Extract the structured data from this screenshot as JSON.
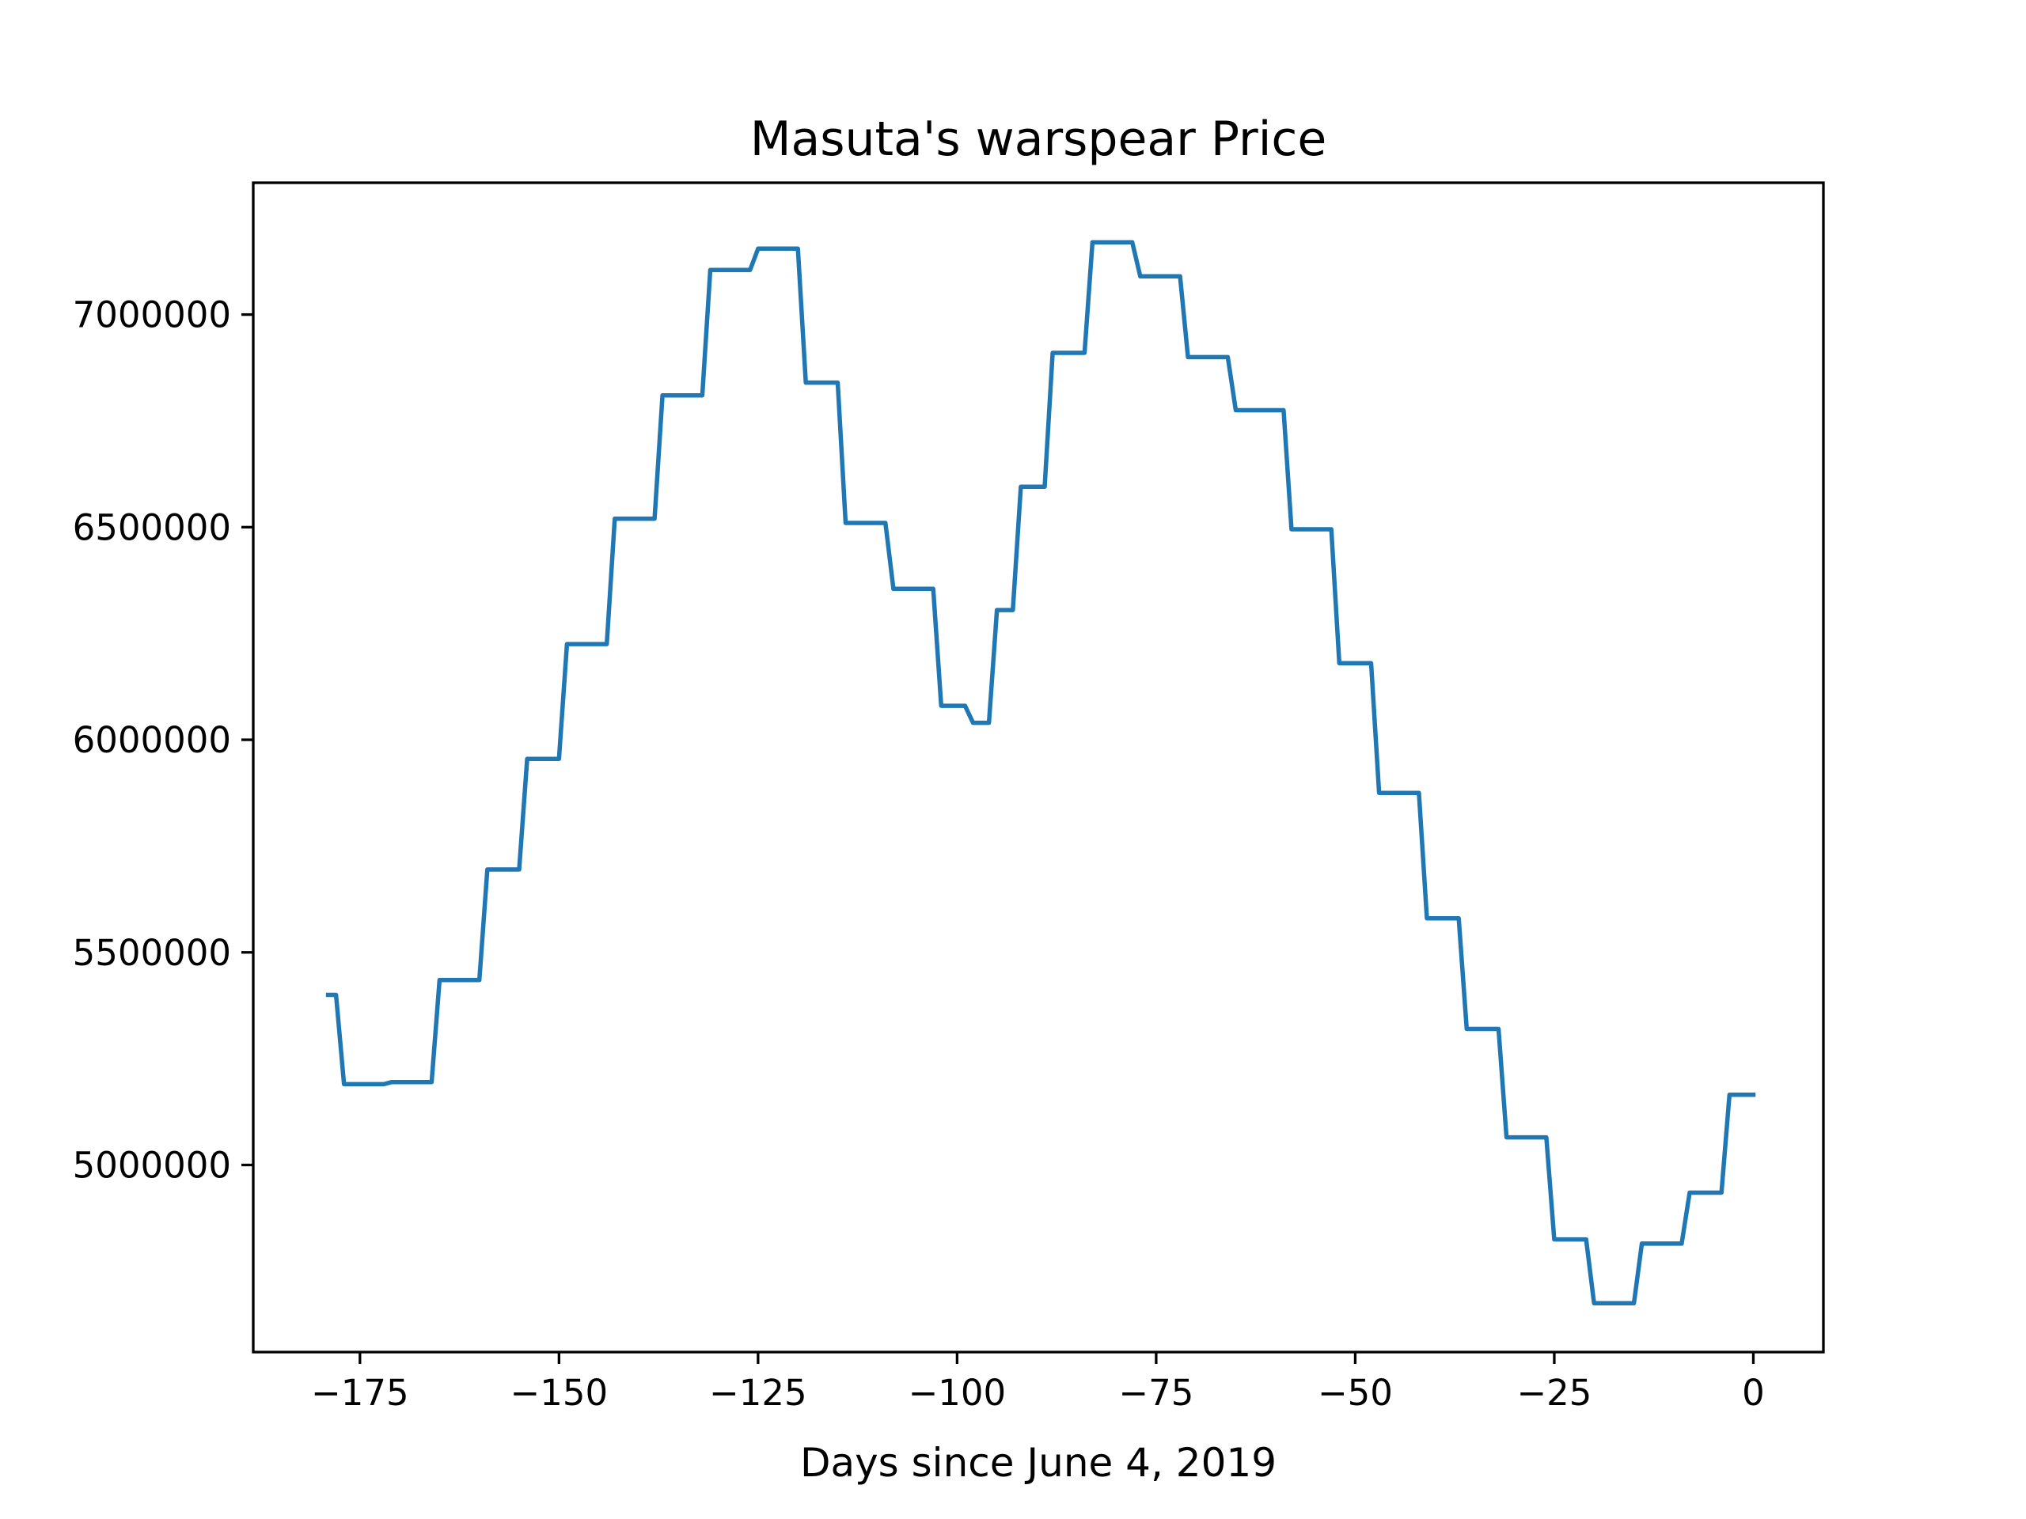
{
  "chart_data": {
    "type": "line",
    "title": "Masuta's warspear Price",
    "xlabel": "Days since June 4, 2019",
    "ylabel": "",
    "xlim": [
      -188.4,
      8.8
    ],
    "ylim": [
      4560000,
      7310000
    ],
    "xticks": [
      -175,
      -150,
      -125,
      -100,
      -75,
      -50,
      -25,
      0
    ],
    "xtick_labels": [
      "−175",
      "−150",
      "−125",
      "−100",
      "−75",
      "−50",
      "−25",
      "0"
    ],
    "yticks": [
      5000000,
      5500000,
      6000000,
      6500000,
      7000000
    ],
    "ytick_labels": [
      "5000000",
      "5500000",
      "6000000",
      "6500000",
      "7000000"
    ],
    "grid": false,
    "colors": {
      "series": "#1f77b4",
      "axes": "#000000",
      "background": "#ffffff"
    },
    "series": [
      {
        "name": "",
        "x": [
          -179,
          -178,
          -177,
          -172,
          -171,
          -166,
          -165,
          -160,
          -159,
          -155,
          -154,
          -150,
          -149,
          -144,
          -143,
          -138,
          -137,
          -132,
          -131,
          -126,
          -125,
          -120,
          -119,
          -115,
          -114,
          -109,
          -108,
          -103,
          -102,
          -99,
          -98,
          -96,
          -95,
          -93,
          -92,
          -89,
          -88,
          -84,
          -83,
          -78,
          -77,
          -72,
          -71,
          -66,
          -65,
          -59,
          -58,
          -53,
          -52,
          -48,
          -47,
          -42,
          -41,
          -37,
          -36,
          -32,
          -31,
          -26,
          -25,
          -21,
          -20,
          -15,
          -14,
          -9,
          -8,
          -4,
          -3,
          0
        ],
        "y": [
          5400000,
          5400000,
          5190000,
          5190000,
          5195000,
          5195000,
          5435000,
          5435000,
          5695000,
          5695000,
          5955000,
          5955000,
          6225000,
          6225000,
          6520000,
          6520000,
          6810000,
          6810000,
          7105000,
          7105000,
          7155000,
          7155000,
          6840000,
          6840000,
          6510000,
          6510000,
          6355000,
          6355000,
          6080000,
          6080000,
          6040000,
          6040000,
          6305000,
          6305000,
          6595000,
          6595000,
          6910000,
          6910000,
          7170000,
          7170000,
          7090000,
          7090000,
          6900000,
          6900000,
          6775000,
          6775000,
          6495000,
          6495000,
          6180000,
          6180000,
          5875000,
          5875000,
          5580000,
          5580000,
          5320000,
          5320000,
          5065000,
          5065000,
          4825000,
          4825000,
          4675000,
          4675000,
          4815000,
          4815000,
          4935000,
          4935000,
          5165000,
          5165000
        ]
      }
    ]
  }
}
